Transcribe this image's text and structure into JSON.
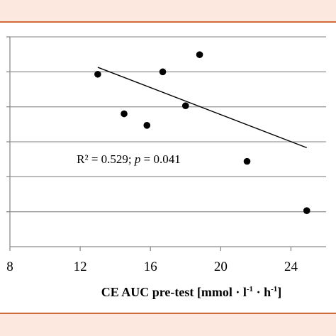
{
  "chart_data": {
    "type": "scatter",
    "title": "",
    "xlabel": "CE AUC pre-test [mmol · l",
    "xlabel_sup1": "-1",
    "xlabel_mid": " · h",
    "xlabel_sup2": "-1",
    "xlabel_end": "]",
    "ylabel": "",
    "xlim": [
      8,
      26
    ],
    "ylim": [
      0,
      6
    ],
    "x_ticks": [
      8,
      12,
      16,
      20,
      24
    ],
    "x_tick_labels": [
      "8",
      "12",
      "16",
      "20",
      "24"
    ],
    "y_gridlines": [
      1,
      2,
      3,
      4,
      5,
      6
    ],
    "grid": true,
    "points": [
      {
        "x": 13.0,
        "y": 4.93
      },
      {
        "x": 14.5,
        "y": 3.8
      },
      {
        "x": 15.8,
        "y": 3.47
      },
      {
        "x": 16.7,
        "y": 5.0
      },
      {
        "x": 18.0,
        "y": 4.03
      },
      {
        "x": 18.8,
        "y": 5.49
      },
      {
        "x": 21.5,
        "y": 2.44
      },
      {
        "x": 24.9,
        "y": 1.03
      }
    ],
    "trendline": {
      "x": [
        13.0,
        24.9
      ],
      "y": [
        5.13,
        2.83
      ]
    },
    "annotation": {
      "r2_text": "R² = 0.529; ",
      "p_symbol": "p",
      "p_text": " = 0.041",
      "x": 11.8,
      "y": 2.39
    },
    "colors": {
      "points": "#000000",
      "gridline": "#9a9a9a",
      "axis": "#8c8c8c",
      "background": "#fce8de",
      "plot_background": "#ffffff",
      "frame": "#d26a3c"
    }
  }
}
